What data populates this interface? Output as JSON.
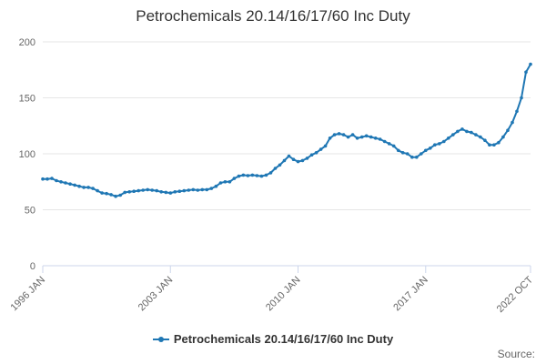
{
  "chart_data": {
    "type": "line",
    "title": "Petrochemicals 20.14/16/17/60 Inc Duty",
    "xlabel": "",
    "ylabel": "",
    "x_ticks": [
      "1996 JAN",
      "2003 JAN",
      "2010 JAN",
      "2017 JAN",
      "2022 OCT"
    ],
    "y_ticks": [
      "0",
      "50",
      "100",
      "150",
      "200"
    ],
    "xlim": [
      "1996-01",
      "2022-10"
    ],
    "ylim": [
      0,
      200
    ],
    "grid": true,
    "legend_position": "bottom",
    "color": "#1f77b4",
    "x": [
      "1996-01",
      "1996-04",
      "1996-07",
      "1996-10",
      "1997-01",
      "1997-04",
      "1997-07",
      "1997-10",
      "1998-01",
      "1998-04",
      "1998-07",
      "1998-10",
      "1999-01",
      "1999-04",
      "1999-07",
      "1999-10",
      "2000-01",
      "2000-04",
      "2000-07",
      "2000-10",
      "2001-01",
      "2001-04",
      "2001-07",
      "2001-10",
      "2002-01",
      "2002-04",
      "2002-07",
      "2002-10",
      "2003-01",
      "2003-04",
      "2003-07",
      "2003-10",
      "2004-01",
      "2004-04",
      "2004-07",
      "2004-10",
      "2005-01",
      "2005-04",
      "2005-07",
      "2005-10",
      "2006-01",
      "2006-04",
      "2006-07",
      "2006-10",
      "2007-01",
      "2007-04",
      "2007-07",
      "2007-10",
      "2008-01",
      "2008-04",
      "2008-07",
      "2008-10",
      "2009-01",
      "2009-04",
      "2009-07",
      "2009-10",
      "2010-01",
      "2010-04",
      "2010-07",
      "2010-10",
      "2011-01",
      "2011-04",
      "2011-07",
      "2011-10",
      "2012-01",
      "2012-04",
      "2012-07",
      "2012-10",
      "2013-01",
      "2013-04",
      "2013-07",
      "2013-10",
      "2014-01",
      "2014-04",
      "2014-07",
      "2014-10",
      "2015-01",
      "2015-04",
      "2015-07",
      "2015-10",
      "2016-01",
      "2016-04",
      "2016-07",
      "2016-10",
      "2017-01",
      "2017-04",
      "2017-07",
      "2017-10",
      "2018-01",
      "2018-04",
      "2018-07",
      "2018-10",
      "2019-01",
      "2019-04",
      "2019-07",
      "2019-10",
      "2020-01",
      "2020-04",
      "2020-07",
      "2020-10",
      "2021-01",
      "2021-04",
      "2021-07",
      "2021-10",
      "2022-01",
      "2022-04",
      "2022-07",
      "2022-10"
    ],
    "series": [
      {
        "name": "Petrochemicals 20.14/16/17/60 Inc Duty",
        "values": [
          77.5,
          77.5,
          78,
          76,
          75,
          74,
          73,
          72,
          71,
          70,
          70,
          69,
          67,
          65,
          64.5,
          63.5,
          62,
          63,
          65.5,
          66,
          66.5,
          67,
          67.5,
          68,
          67.5,
          67,
          66,
          65.5,
          65,
          66,
          66.5,
          67,
          67.5,
          68,
          67.5,
          68,
          68,
          69,
          71,
          74,
          75,
          75,
          78,
          80,
          81,
          80.5,
          81,
          80.5,
          80,
          81,
          83,
          87,
          90,
          94,
          98,
          95,
          93,
          94,
          96,
          99,
          101,
          104,
          107,
          114,
          117,
          118,
          117,
          115,
          117,
          114,
          115,
          116,
          115,
          114,
          113,
          111,
          109,
          107,
          103,
          101,
          100,
          97,
          97,
          100,
          103,
          105,
          108,
          109,
          111,
          114,
          117,
          120,
          122,
          120,
          119,
          117,
          115,
          112,
          108,
          108,
          110,
          115,
          121,
          128,
          138,
          150,
          173,
          180
        ]
      }
    ]
  },
  "legend": {
    "label": "Petrochemicals 20.14/16/17/60 Inc Duty"
  },
  "source": {
    "label": "Source:"
  }
}
